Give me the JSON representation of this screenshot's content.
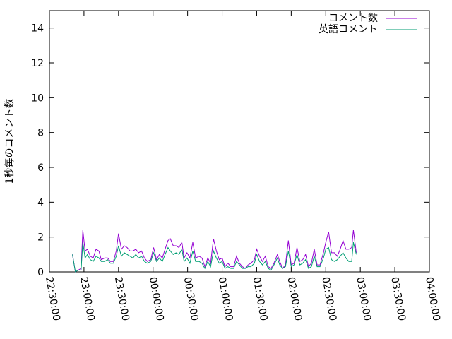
{
  "chart_data": {
    "type": "line",
    "title": "",
    "xlabel": "",
    "ylabel": "1秒毎のコメント数",
    "ylim": [
      0,
      15
    ],
    "yticks": [
      0,
      2,
      4,
      6,
      8,
      10,
      12,
      14
    ],
    "xlim": [
      "22:30:00",
      "04:00:00"
    ],
    "xticks": [
      "22:30:00",
      "23:00:00",
      "23:30:00",
      "00:00:00",
      "00:30:00",
      "01:00:00",
      "01:30:00",
      "02:00:00",
      "02:30:00",
      "03:00:00",
      "03:30:00",
      "04:00:00"
    ],
    "grid": false,
    "legend_position": "top-right",
    "colors": {
      "comments": "#9400d3",
      "english": "#009e73"
    },
    "series": [
      {
        "name": "コメント数",
        "points": [
          [
            "22:50:00",
            1.0
          ],
          [
            "22:52:30",
            0.0
          ],
          [
            "22:55:00",
            0.1
          ],
          [
            "22:57:30",
            0.2
          ],
          [
            "22:59:00",
            2.4
          ],
          [
            "23:01:00",
            1.2
          ],
          [
            "23:03:00",
            1.3
          ],
          [
            "23:05:30",
            0.9
          ],
          [
            "23:08:00",
            0.8
          ],
          [
            "23:10:30",
            1.3
          ],
          [
            "23:13:00",
            1.2
          ],
          [
            "23:15:00",
            0.7
          ],
          [
            "23:18:00",
            0.8
          ],
          [
            "23:20:30",
            0.8
          ],
          [
            "23:23:00",
            0.6
          ],
          [
            "23:25:30",
            0.6
          ],
          [
            "23:28:00",
            1.2
          ],
          [
            "23:30:00",
            2.2
          ],
          [
            "23:32:30",
            1.3
          ],
          [
            "23:35:00",
            1.5
          ],
          [
            "23:37:30",
            1.4
          ],
          [
            "23:40:00",
            1.2
          ],
          [
            "23:42:30",
            1.2
          ],
          [
            "23:45:00",
            1.3
          ],
          [
            "23:47:30",
            1.1
          ],
          [
            "23:50:00",
            1.2
          ],
          [
            "23:52:30",
            0.8
          ],
          [
            "23:55:00",
            0.6
          ],
          [
            "23:58:00",
            0.7
          ],
          [
            "00:00:30",
            1.4
          ],
          [
            "00:03:00",
            0.7
          ],
          [
            "00:05:30",
            1.0
          ],
          [
            "00:08:00",
            0.8
          ],
          [
            "00:10:30",
            1.3
          ],
          [
            "00:13:00",
            1.8
          ],
          [
            "00:15:00",
            1.9
          ],
          [
            "00:17:30",
            1.5
          ],
          [
            "00:20:00",
            1.5
          ],
          [
            "00:22:30",
            1.4
          ],
          [
            "00:25:00",
            1.7
          ],
          [
            "00:27:00",
            0.8
          ],
          [
            "00:29:30",
            1.1
          ],
          [
            "00:32:00",
            0.8
          ],
          [
            "00:34:30",
            1.7
          ],
          [
            "00:37:00",
            0.8
          ],
          [
            "00:40:00",
            0.9
          ],
          [
            "00:42:30",
            0.8
          ],
          [
            "00:45:00",
            0.3
          ],
          [
            "00:47:30",
            0.8
          ],
          [
            "00:50:00",
            0.5
          ],
          [
            "00:52:30",
            1.9
          ],
          [
            "00:55:00",
            1.2
          ],
          [
            "00:57:30",
            0.7
          ],
          [
            "01:00:00",
            0.8
          ],
          [
            "01:02:30",
            0.3
          ],
          [
            "01:05:00",
            0.5
          ],
          [
            "01:07:30",
            0.3
          ],
          [
            "01:10:00",
            0.3
          ],
          [
            "01:12:30",
            0.9
          ],
          [
            "01:15:00",
            0.5
          ],
          [
            "01:17:30",
            0.3
          ],
          [
            "01:20:00",
            0.2
          ],
          [
            "01:22:30",
            0.4
          ],
          [
            "01:25:00",
            0.5
          ],
          [
            "01:28:00",
            0.7
          ],
          [
            "01:30:00",
            1.3
          ],
          [
            "01:32:30",
            0.9
          ],
          [
            "01:35:00",
            0.6
          ],
          [
            "01:37:30",
            0.9
          ],
          [
            "01:40:00",
            0.3
          ],
          [
            "01:42:30",
            0.2
          ],
          [
            "01:45:00",
            0.5
          ],
          [
            "01:48:00",
            1.0
          ],
          [
            "01:50:00",
            0.6
          ],
          [
            "01:52:30",
            0.2
          ],
          [
            "01:55:00",
            0.4
          ],
          [
            "01:57:30",
            1.8
          ],
          [
            "02:00:00",
            0.4
          ],
          [
            "02:02:30",
            0.5
          ],
          [
            "02:05:00",
            1.4
          ],
          [
            "02:07:30",
            0.6
          ],
          [
            "02:10:00",
            0.7
          ],
          [
            "02:12:30",
            1.0
          ],
          [
            "02:15:00",
            0.3
          ],
          [
            "02:17:30",
            0.5
          ],
          [
            "02:20:00",
            1.3
          ],
          [
            "02:22:30",
            0.4
          ],
          [
            "02:25:00",
            0.4
          ],
          [
            "02:28:00",
            1.1
          ],
          [
            "02:30:00",
            1.7
          ],
          [
            "02:32:30",
            2.3
          ],
          [
            "02:35:00",
            1.1
          ],
          [
            "02:37:30",
            1.1
          ],
          [
            "02:40:00",
            0.9
          ],
          [
            "02:42:30",
            1.3
          ],
          [
            "02:45:00",
            1.8
          ],
          [
            "02:47:30",
            1.3
          ],
          [
            "02:50:00",
            1.3
          ],
          [
            "02:52:30",
            1.4
          ],
          [
            "02:54:00",
            2.4
          ],
          [
            "02:56:30",
            1.1
          ]
        ]
      },
      {
        "name": "英語コメント",
        "points": [
          [
            "22:50:00",
            1.0
          ],
          [
            "22:52:30",
            0.0
          ],
          [
            "22:55:00",
            0.1
          ],
          [
            "22:57:30",
            0.1
          ],
          [
            "22:59:00",
            1.7
          ],
          [
            "23:01:00",
            0.8
          ],
          [
            "23:03:00",
            1.0
          ],
          [
            "23:05:30",
            0.7
          ],
          [
            "23:08:00",
            0.6
          ],
          [
            "23:10:30",
            0.9
          ],
          [
            "23:13:00",
            0.8
          ],
          [
            "23:15:00",
            0.6
          ],
          [
            "23:18:00",
            0.6
          ],
          [
            "23:20:30",
            0.7
          ],
          [
            "23:23:00",
            0.5
          ],
          [
            "23:25:30",
            0.5
          ],
          [
            "23:28:00",
            0.9
          ],
          [
            "23:30:00",
            1.5
          ],
          [
            "23:32:30",
            0.9
          ],
          [
            "23:35:00",
            1.1
          ],
          [
            "23:37:30",
            1.0
          ],
          [
            "23:40:00",
            0.9
          ],
          [
            "23:42:30",
            0.8
          ],
          [
            "23:45:00",
            1.0
          ],
          [
            "23:47:30",
            0.8
          ],
          [
            "23:50:00",
            0.9
          ],
          [
            "23:52:30",
            0.6
          ],
          [
            "23:55:00",
            0.5
          ],
          [
            "23:58:00",
            0.6
          ],
          [
            "00:00:30",
            1.1
          ],
          [
            "00:03:00",
            0.6
          ],
          [
            "00:05:30",
            0.8
          ],
          [
            "00:08:00",
            0.6
          ],
          [
            "00:10:30",
            1.0
          ],
          [
            "00:13:00",
            1.4
          ],
          [
            "00:15:00",
            1.2
          ],
          [
            "00:17:30",
            1.0
          ],
          [
            "00:20:00",
            1.1
          ],
          [
            "00:22:30",
            1.0
          ],
          [
            "00:25:00",
            1.3
          ],
          [
            "00:27:00",
            0.6
          ],
          [
            "00:29:30",
            0.8
          ],
          [
            "00:32:00",
            0.5
          ],
          [
            "00:34:30",
            1.2
          ],
          [
            "00:37:00",
            0.6
          ],
          [
            "00:40:00",
            0.6
          ],
          [
            "00:42:30",
            0.5
          ],
          [
            "00:45:00",
            0.2
          ],
          [
            "00:47:30",
            0.6
          ],
          [
            "00:50:00",
            0.3
          ],
          [
            "00:52:30",
            1.2
          ],
          [
            "00:55:00",
            0.8
          ],
          [
            "00:57:30",
            0.5
          ],
          [
            "01:00:00",
            0.6
          ],
          [
            "01:02:30",
            0.2
          ],
          [
            "01:05:00",
            0.3
          ],
          [
            "01:07:30",
            0.2
          ],
          [
            "01:10:00",
            0.2
          ],
          [
            "01:12:30",
            0.6
          ],
          [
            "01:15:00",
            0.4
          ],
          [
            "01:17:30",
            0.2
          ],
          [
            "01:20:00",
            0.2
          ],
          [
            "01:22:30",
            0.3
          ],
          [
            "01:25:00",
            0.3
          ],
          [
            "01:28:00",
            0.5
          ],
          [
            "01:30:00",
            1.0
          ],
          [
            "01:32:30",
            0.6
          ],
          [
            "01:35:00",
            0.4
          ],
          [
            "01:37:30",
            0.6
          ],
          [
            "01:40:00",
            0.2
          ],
          [
            "01:42:30",
            0.1
          ],
          [
            "01:45:00",
            0.4
          ],
          [
            "01:48:00",
            0.8
          ],
          [
            "01:50:00",
            0.4
          ],
          [
            "01:52:30",
            0.2
          ],
          [
            "01:55:00",
            0.3
          ],
          [
            "01:57:30",
            1.2
          ],
          [
            "02:00:00",
            0.3
          ],
          [
            "02:02:30",
            0.4
          ],
          [
            "02:05:00",
            1.0
          ],
          [
            "02:07:30",
            0.4
          ],
          [
            "02:10:00",
            0.5
          ],
          [
            "02:12:30",
            0.7
          ],
          [
            "02:15:00",
            0.2
          ],
          [
            "02:17:30",
            0.3
          ],
          [
            "02:20:00",
            0.9
          ],
          [
            "02:22:30",
            0.3
          ],
          [
            "02:25:00",
            0.3
          ],
          [
            "02:28:00",
            0.8
          ],
          [
            "02:30:00",
            1.3
          ],
          [
            "02:32:30",
            1.4
          ],
          [
            "02:35:00",
            0.7
          ],
          [
            "02:37:30",
            0.6
          ],
          [
            "02:40:00",
            0.7
          ],
          [
            "02:42:30",
            0.9
          ],
          [
            "02:45:00",
            1.1
          ],
          [
            "02:47:30",
            0.8
          ],
          [
            "02:50:00",
            0.6
          ],
          [
            "02:52:30",
            0.6
          ],
          [
            "02:54:00",
            1.7
          ],
          [
            "02:56:30",
            1.0
          ]
        ]
      }
    ]
  }
}
